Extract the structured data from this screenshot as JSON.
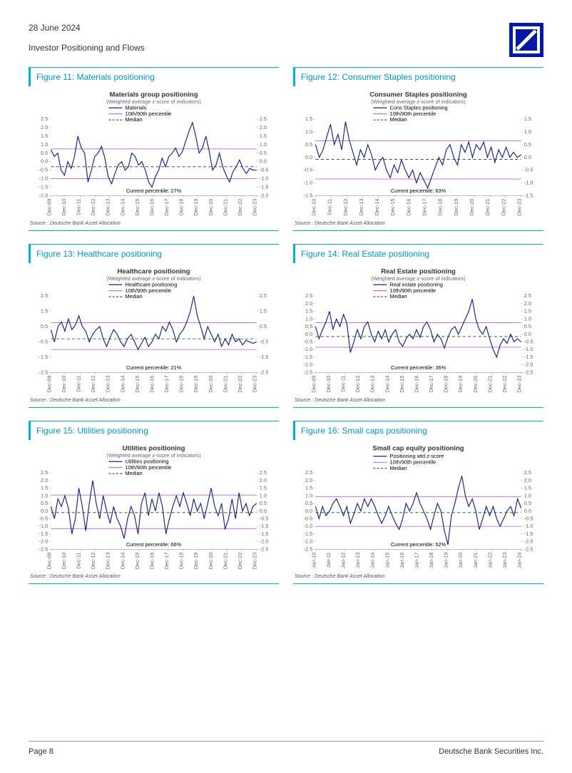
{
  "page": {
    "date": "28 June 2024",
    "subtitle": "Investor Positioning and Flows",
    "page_number": "Page 8",
    "footer_right": "Deutsche Bank Securities Inc.",
    "source_text": "Source : Deutsche Bank Asset Allocation",
    "logo_bg": "#0018a8",
    "logo_stroke": "#ffffff"
  },
  "common": {
    "axis_color": "#999999",
    "tick_color": "#666666",
    "series_color": "#1a237e",
    "percentile_color": "#c060d8",
    "median_color": "#333333",
    "grid_color": "#dddddd",
    "title_color": "#333333",
    "subtitle_color": "#666666",
    "text_black": "#000000",
    "font_tick": 7,
    "font_title": 9,
    "font_sub": 7,
    "font_legend": 7
  },
  "charts": [
    {
      "id": "fig11",
      "figure_label": "Figure 11: Materials positioning",
      "title": "Materials group positioning",
      "subtitle": "(Weighted average z-score of indicators)",
      "legend_series": "Materials",
      "legend_pct": "10th/90th percentile",
      "legend_med": "Median",
      "percentile_text": "Current percentile: 27%",
      "ylim": [
        -2.0,
        2.5
      ],
      "yticks": [
        -2.0,
        -1.5,
        -1.0,
        -0.5,
        0.0,
        0.5,
        1.0,
        1.5,
        2.0,
        2.5
      ],
      "xticks": [
        "Dec-09",
        "Dec-10",
        "Dec-11",
        "Dec-12",
        "Dec-13",
        "Dec-14",
        "Dec-15",
        "Dec-16",
        "Dec-17",
        "Dec-18",
        "Dec-19",
        "Dec-20",
        "Dec-21",
        "Dec-22",
        "Dec-23"
      ],
      "p90": 0.75,
      "p10": -1.0,
      "median": -0.3,
      "data": [
        0.7,
        0.3,
        0.5,
        -0.5,
        -0.8,
        0.0,
        -0.4,
        0.3,
        1.5,
        0.8,
        0.5,
        -1.2,
        -0.5,
        0.3,
        0.5,
        0.9,
        0.2,
        -0.9,
        -1.3,
        -0.7,
        -0.2,
        0.0,
        -0.5,
        -0.3,
        0.5,
        0.3,
        -0.2,
        0.0,
        -0.5,
        -1.2,
        -1.5,
        -0.9,
        -0.5,
        0.2,
        -0.3,
        0.3,
        0.5,
        0.8,
        0.3,
        0.6,
        1.2,
        1.8,
        2.3,
        1.5,
        0.5,
        0.8,
        1.5,
        0.6,
        -0.5,
        -0.2,
        0.5,
        -0.3,
        -0.8,
        -1.2,
        -0.6,
        -0.3,
        0.1,
        -0.4,
        -0.7,
        -0.4,
        -0.5,
        -0.5
      ]
    },
    {
      "id": "fig12",
      "figure_label": "Figure 12: Consumer Staples positioning",
      "title": "Consumer Staples positioning",
      "subtitle": "(Weighted average z-score of indicators)",
      "legend_series": "Cons Staples positioning",
      "legend_pct": "10th/90th percentile",
      "legend_med": "Median",
      "percentile_text": "Current percentile: 63%",
      "ylim": [
        -1.5,
        1.5
      ],
      "yticks": [
        -1.5,
        -1.0,
        -0.5,
        0.0,
        0.5,
        1.0,
        1.5
      ],
      "xticks": [
        "Dec-10",
        "Dec-11",
        "Dec-12",
        "Dec-13",
        "Dec-14",
        "Dec-15",
        "Dec-16",
        "Dec-17",
        "Dec-18",
        "Dec-19",
        "Dec-20",
        "Dec-21",
        "Dec-22",
        "Dec-23"
      ],
      "p90": 0.65,
      "p10": -0.85,
      "median": -0.08,
      "data": [
        0.5,
        0.0,
        0.3,
        0.8,
        1.3,
        0.5,
        0.9,
        0.3,
        1.4,
        0.7,
        0.2,
        -0.3,
        0.3,
        0.0,
        0.5,
        0.1,
        -0.5,
        -0.2,
        0.0,
        -0.5,
        -0.8,
        -0.3,
        -0.6,
        -0.1,
        -0.5,
        -0.8,
        -0.5,
        -1.0,
        -0.6,
        -0.9,
        -1.2,
        -0.8,
        -0.4,
        0.0,
        -0.3,
        0.3,
        0.5,
        0.0,
        -0.3,
        0.5,
        0.2,
        0.6,
        0.0,
        0.5,
        0.3,
        0.6,
        0.0,
        0.4,
        -0.2,
        0.3,
        0.0,
        0.4,
        0.0,
        0.2,
        0.0,
        0.1
      ]
    },
    {
      "id": "fig13",
      "figure_label": "Figure 13: Healthcare positioning",
      "title": "Healthcare positioning",
      "subtitle": "(Weighted average z-score of indicators)",
      "legend_series": "Healthcare positioning",
      "legend_pct": "10th/90th percentile",
      "legend_med": "Median",
      "percentile_text": "Current percentile: 21%",
      "ylim": [
        -2.5,
        2.5
      ],
      "yticks": [
        -2.5,
        -1.5,
        -0.5,
        0.5,
        1.5,
        2.5
      ],
      "xticks": [
        "Dec-09",
        "Dec-10",
        "Dec-11",
        "Dec-12",
        "Dec-13",
        "Dec-14",
        "Dec-15",
        "Dec-16",
        "Dec-17",
        "Dec-18",
        "Dec-19",
        "Dec-20",
        "Dec-21",
        "Dec-22",
        "Dec-23"
      ],
      "p90": 0.75,
      "p10": -1.0,
      "median": -0.3,
      "data": [
        0.3,
        -0.5,
        0.5,
        0.8,
        0.2,
        1.0,
        0.3,
        0.6,
        1.2,
        0.5,
        0.2,
        -0.5,
        0.0,
        0.3,
        0.5,
        -0.3,
        -0.8,
        -0.2,
        0.3,
        0.0,
        -0.5,
        -0.8,
        -0.3,
        0.0,
        -0.5,
        -1.0,
        -0.6,
        -0.2,
        -0.8,
        -0.5,
        0.0,
        -0.3,
        0.5,
        0.2,
        0.8,
        0.3,
        -0.5,
        0.0,
        0.3,
        0.8,
        1.5,
        2.5,
        1.2,
        0.5,
        -0.3,
        0.5,
        0.0,
        -0.5,
        0.0,
        -0.8,
        -0.3,
        -0.7,
        0.0,
        -0.5,
        -0.3,
        -0.7,
        -0.4,
        -0.5,
        -0.6,
        -0.5
      ]
    },
    {
      "id": "fig14",
      "figure_label": "Figure 14: Real Estate positioning",
      "title": "Real Estate positioning",
      "subtitle": "(Weighted average z-score of indicators)",
      "legend_series": "Real estate positioning",
      "legend_pct": "10th/90th percentile",
      "legend_med": "Median",
      "percentile_text": "Current percentile: 36%",
      "ylim": [
        -2.5,
        2.5
      ],
      "yticks": [
        -2.5,
        -2.0,
        -1.5,
        -1.0,
        -0.5,
        0.0,
        0.5,
        1.0,
        1.5,
        2.0,
        2.5
      ],
      "xticks": [
        "Dec-09",
        "Dec-10",
        "Dec-11",
        "Dec-12",
        "Dec-13",
        "Dec-14",
        "Dec-15",
        "Dec-16",
        "Dec-17",
        "Dec-18",
        "Dec-19",
        "Dec-20",
        "Dec-21",
        "Dec-22",
        "Dec-23"
      ],
      "p90": 0.75,
      "p10": -0.85,
      "median": -0.15,
      "data": [
        0.5,
        -0.3,
        0.3,
        0.8,
        1.5,
        0.3,
        1.0,
        0.5,
        1.3,
        0.7,
        -1.2,
        -0.5,
        0.3,
        -0.3,
        0.5,
        0.8,
        0.0,
        -0.5,
        0.2,
        -0.3,
        0.3,
        -0.5,
        0.0,
        0.3,
        -0.5,
        -0.8,
        -0.3,
        0.0,
        -0.3,
        0.3,
        -0.2,
        0.5,
        0.8,
        0.3,
        -0.5,
        0.0,
        -0.3,
        -0.9,
        -0.2,
        0.3,
        0.5,
        0.0,
        0.5,
        1.0,
        1.5,
        2.3,
        1.0,
        0.3,
        0.0,
        0.5,
        -0.3,
        -1.0,
        -1.5,
        -0.7,
        -0.3,
        -0.6,
        0.0,
        -0.5,
        -0.3,
        -0.5
      ]
    },
    {
      "id": "fig15",
      "figure_label": "Figure 15: Utilities positioning",
      "title": "Utilities positioning",
      "subtitle": "(Weighted average z-score of indicators)",
      "legend_series": "Utilities positioning",
      "legend_pct": "10th/90th percentile",
      "legend_med": "Median",
      "percentile_text": "Current percentile: 66%",
      "ylim": [
        -2.5,
        2.5
      ],
      "yticks": [
        -2.5,
        -2.0,
        -1.5,
        -1.0,
        -0.5,
        0.0,
        0.5,
        1.0,
        1.5,
        2.0,
        2.5
      ],
      "xticks": [
        "Dec-09",
        "Dec-10",
        "Dec-11",
        "Dec-12",
        "Dec-13",
        "Dec-14",
        "Dec-15",
        "Dec-16",
        "Dec-17",
        "Dec-18",
        "Dec-19",
        "Dec-20",
        "Dec-21",
        "Dec-22",
        "Dec-23"
      ],
      "p90": 1.05,
      "p10": -1.15,
      "median": -0.1,
      "data": [
        0.3,
        -0.5,
        0.8,
        0.3,
        1.0,
        0.2,
        -1.5,
        -0.5,
        1.5,
        0.3,
        -1.3,
        0.5,
        2.0,
        0.5,
        -0.5,
        1.0,
        0.0,
        -0.8,
        0.3,
        -0.5,
        -1.0,
        -1.8,
        -0.5,
        0.3,
        -0.3,
        -1.5,
        0.5,
        1.2,
        -0.3,
        0.8,
        0.0,
        1.2,
        0.3,
        -1.5,
        -0.5,
        0.3,
        1.0,
        0.3,
        1.2,
        0.5,
        -0.3,
        0.8,
        0.0,
        0.5,
        -0.5,
        0.5,
        1.5,
        0.3,
        -0.3,
        0.5,
        -1.2,
        -0.5,
        0.8,
        -0.5,
        1.2,
        0.0,
        0.5,
        -0.3,
        0.3,
        0.5
      ]
    },
    {
      "id": "fig16",
      "figure_label": "Figure 16: Small caps positioning",
      "title": "Small cap equity positioning",
      "subtitle": "",
      "legend_series": "Positioning wtd z-score",
      "legend_pct": "10th/90th percentile",
      "legend_med": "Median",
      "percentile_text": "Current percentile: 52%",
      "ylim": [
        -2.5,
        2.5
      ],
      "yticks": [
        -2.5,
        -2.0,
        -1.5,
        -1.0,
        -0.5,
        0.0,
        0.5,
        1.0,
        1.5,
        2.0,
        2.5
      ],
      "xticks": [
        "Jan-10",
        "Jan-11",
        "Jan-12",
        "Jan-13",
        "Jan-14",
        "Jan-15",
        "Jan-16",
        "Jan-17",
        "Jan-18",
        "Jan-19",
        "Jan-20",
        "Jan-21",
        "Jan-22",
        "Jan-23",
        "Jan-24"
      ],
      "p90": 0.95,
      "p10": -1.0,
      "median": -0.1,
      "data": [
        0.3,
        -0.5,
        0.3,
        -0.3,
        0.0,
        0.5,
        0.8,
        0.3,
        -0.3,
        0.3,
        -0.8,
        -0.2,
        0.5,
        0.0,
        0.8,
        0.3,
        0.8,
        0.3,
        -0.3,
        -0.8,
        -0.3,
        0.3,
        -0.3,
        -0.8,
        -1.2,
        -0.5,
        0.5,
        0.0,
        0.5,
        1.2,
        0.5,
        0.0,
        -0.5,
        -1.2,
        -0.3,
        0.5,
        0.0,
        -1.3,
        -2.2,
        -0.3,
        0.5,
        1.5,
        2.3,
        1.0,
        0.3,
        0.8,
        0.0,
        -1.2,
        -0.5,
        0.3,
        -0.3,
        0.3,
        -0.5,
        -1.0,
        -0.5,
        0.0,
        0.3,
        -0.3,
        0.8,
        0.2
      ]
    }
  ]
}
